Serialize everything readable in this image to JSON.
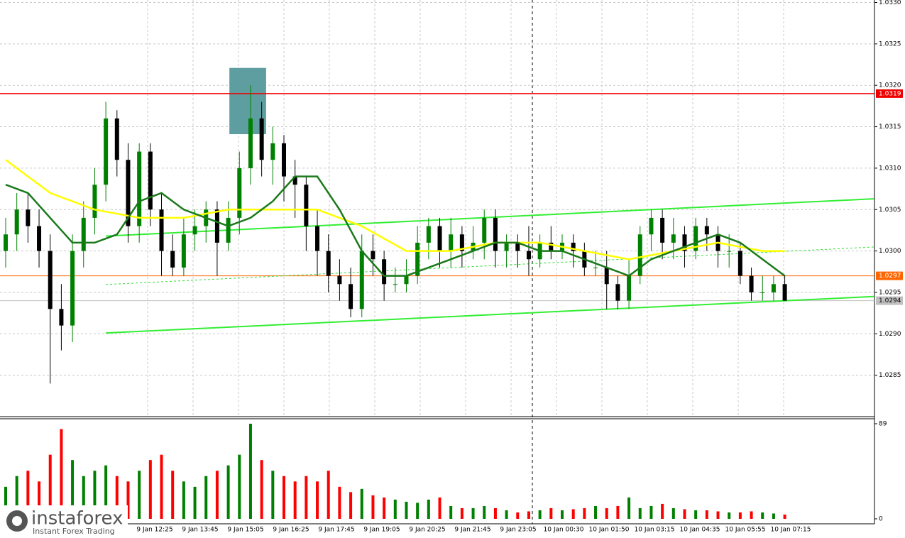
{
  "chart_data": {
    "type": "candlestick",
    "ylim": [
      1.028,
      1.03303
    ],
    "yticks": [
      {
        "value": 1.033,
        "label": "1.0330"
      },
      1.0325,
      {
        "value": 1.032,
        "label": "1.0320"
      },
      1.0315,
      {
        "value": 1.031,
        "label": "1.0310"
      },
      1.0305,
      {
        "value": 1.03,
        "label": "1.0300"
      },
      1.0295,
      {
        "value": 1.029,
        "label": "1.0290"
      },
      1.0285
    ],
    "grid": true,
    "xlabels": [
      "9 Jan 12:25",
      "9 Jan 13:45",
      "9 Jan 15:05",
      "9 Jan 16:25",
      "9 Jan 17:45",
      "9 Jan 19:05",
      "9 Jan 20:25",
      "9 Jan 21:45",
      "9 Jan 23:05",
      "10 Jan 00:30",
      "10 Jan 01:50",
      "10 Jan 03:15",
      "10 Jan 04:35",
      "10 Jan 05:55",
      "10 Jan 07:15"
    ],
    "up_color": "#008000",
    "down_color": "#000000",
    "volume_up_color": "#008000",
    "volume_down_color": "#ff0000",
    "open": [
      1.03,
      1.0302,
      1.0305,
      1.0303,
      1.03,
      1.0293,
      1.0291,
      1.03,
      1.0304,
      1.0308,
      1.0316,
      1.0311,
      1.0303,
      1.0312,
      1.0305,
      1.03,
      1.0298,
      1.0302,
      1.0303,
      1.0305,
      1.0301,
      1.0304,
      1.031,
      1.0316,
      1.0311,
      1.0313,
      1.0309,
      1.0308,
      1.0303,
      1.03,
      1.0297,
      1.0296,
      1.0293,
      1.03,
      1.0299,
      1.0296,
      1.0296,
      1.0297,
      1.0301,
      1.0303,
      1.03,
      1.0302,
      1.03,
      1.0301,
      1.0304,
      1.03,
      1.0301,
      1.03,
      1.0299,
      1.0301,
      1.03,
      1.0301,
      1.03,
      1.0298,
      1.0298,
      1.0296,
      1.0294,
      1.0297,
      1.0302,
      1.0304,
      1.0301,
      1.0302,
      1.03,
      1.0303,
      1.0302,
      1.03,
      1.03,
      1.0297,
      1.0295,
      1.0295,
      1.0296
    ],
    "high": [
      1.0304,
      1.0307,
      1.0307,
      1.0305,
      1.0302,
      1.0296,
      1.0302,
      1.0306,
      1.031,
      1.0318,
      1.0317,
      1.0313,
      1.0313,
      1.0313,
      1.0307,
      1.0302,
      1.0304,
      1.0305,
      1.0306,
      1.0306,
      1.0306,
      1.0312,
      1.032,
      1.0318,
      1.0315,
      1.0314,
      1.0311,
      1.0309,
      1.0305,
      1.0302,
      1.0299,
      1.0298,
      1.0302,
      1.0302,
      1.03,
      1.0298,
      1.0299,
      1.0303,
      1.0304,
      1.0304,
      1.0304,
      1.0303,
      1.0303,
      1.0305,
      1.0305,
      1.0302,
      1.0302,
      1.0303,
      1.0302,
      1.0303,
      1.0302,
      1.0302,
      1.0301,
      1.03,
      1.03,
      1.0297,
      1.0299,
      1.0303,
      1.0305,
      1.0305,
      1.0304,
      1.0303,
      1.0304,
      1.0304,
      1.0303,
      1.0302,
      1.0301,
      1.0298,
      1.0297,
      1.0297,
      1.0297
    ],
    "low": [
      1.0298,
      1.03,
      1.0301,
      1.0298,
      1.0284,
      1.0288,
      1.0289,
      1.0298,
      1.0302,
      1.0306,
      1.0309,
      1.0301,
      1.0301,
      1.0303,
      1.0297,
      1.0297,
      1.0297,
      1.03,
      1.0301,
      1.0297,
      1.03,
      1.0302,
      1.0308,
      1.0309,
      1.0308,
      1.0306,
      1.0304,
      1.03,
      1.0297,
      1.0295,
      1.0294,
      1.0292,
      1.0292,
      1.0297,
      1.0294,
      1.0295,
      1.0295,
      1.0296,
      1.0299,
      1.0298,
      1.0298,
      1.0298,
      1.0299,
      1.0299,
      1.0298,
      1.0298,
      1.0298,
      1.0297,
      1.0298,
      1.0299,
      1.0299,
      1.0298,
      1.0297,
      1.0297,
      1.0293,
      1.0293,
      1.0293,
      1.0296,
      1.03,
      1.0299,
      1.0299,
      1.0298,
      1.0299,
      1.03,
      1.0298,
      1.0298,
      1.0296,
      1.0294,
      1.0294,
      1.0294,
      1.0294
    ],
    "close": [
      1.0302,
      1.0305,
      1.0303,
      1.03,
      1.0293,
      1.0291,
      1.03,
      1.0304,
      1.0308,
      1.0316,
      1.0311,
      1.0303,
      1.0312,
      1.0305,
      1.03,
      1.0298,
      1.0302,
      1.0303,
      1.0305,
      1.0301,
      1.0304,
      1.031,
      1.0316,
      1.0311,
      1.0313,
      1.0309,
      1.0308,
      1.0303,
      1.03,
      1.0297,
      1.0296,
      1.0293,
      1.03,
      1.0299,
      1.0296,
      1.0296,
      1.0297,
      1.0301,
      1.0303,
      1.03,
      1.0302,
      1.03,
      1.0301,
      1.0304,
      1.03,
      1.0301,
      1.03,
      1.0299,
      1.0301,
      1.03,
      1.0301,
      1.03,
      1.0298,
      1.0298,
      1.0296,
      1.0294,
      1.0297,
      1.0302,
      1.0304,
      1.0301,
      1.0302,
      1.03,
      1.0303,
      1.0302,
      1.03,
      1.03,
      1.0297,
      1.0295,
      1.0295,
      1.0296,
      1.0294
    ],
    "volume": [
      30,
      40,
      45,
      35,
      60,
      84,
      55,
      40,
      45,
      50,
      40,
      35,
      45,
      55,
      60,
      45,
      35,
      30,
      40,
      45,
      50,
      60,
      89,
      55,
      45,
      40,
      35,
      40,
      35,
      45,
      30,
      25,
      28,
      22,
      20,
      18,
      16,
      15,
      18,
      20,
      12,
      10,
      10,
      12,
      10,
      8,
      6,
      7,
      8,
      10,
      8,
      9,
      10,
      12,
      10,
      12,
      20,
      10,
      12,
      14,
      10,
      9,
      8,
      8,
      7,
      6,
      6,
      7,
      6,
      5,
      4
    ],
    "vlim": [
      0,
      89
    ],
    "vticks": [
      89,
      0
    ],
    "moving_averages": [
      {
        "color": "#ffff00",
        "x": [
          0,
          4,
          8,
          12,
          16,
          20,
          24,
          28,
          32,
          36,
          40,
          44,
          48,
          52,
          56,
          60,
          64,
          68,
          70
        ],
        "values": [
          1.0311,
          1.0307,
          1.0305,
          1.0304,
          1.0304,
          1.0305,
          1.0305,
          1.0305,
          1.0303,
          1.03,
          1.03,
          1.0301,
          1.0301,
          1.03,
          1.0299,
          1.03,
          1.0301,
          1.03,
          1.03
        ]
      },
      {
        "color": "#1a7a1a",
        "x": [
          0,
          2,
          4,
          6,
          8,
          10,
          12,
          14,
          16,
          18,
          20,
          22,
          24,
          26,
          28,
          30,
          32,
          34,
          36,
          38,
          40,
          42,
          44,
          46,
          48,
          50,
          52,
          54,
          56,
          58,
          60,
          62,
          64,
          66,
          68,
          70
        ],
        "values": [
          1.0308,
          1.0307,
          1.0304,
          1.0301,
          1.0301,
          1.0302,
          1.0306,
          1.0307,
          1.0305,
          1.0304,
          1.0303,
          1.0304,
          1.0306,
          1.0309,
          1.0309,
          1.0305,
          1.03,
          1.0297,
          1.0297,
          1.0298,
          1.0299,
          1.03,
          1.0301,
          1.0301,
          1.03,
          1.03,
          1.0299,
          1.0298,
          1.0297,
          1.0299,
          1.03,
          1.0301,
          1.0302,
          1.0301,
          1.0299,
          1.0297
        ]
      }
    ],
    "trend_lines": [
      {
        "color": "#33ee33",
        "x": [
          9,
          78
        ],
        "values": [
          1.03018,
          1.03063
        ]
      },
      {
        "color": "#33ee33",
        "x": [
          9,
          78
        ],
        "values": [
          1.02901,
          1.02945
        ]
      },
      {
        "color": "#33dd33",
        "dashed": true,
        "x": [
          9,
          78
        ],
        "values": [
          1.029595,
          1.030048
        ]
      }
    ],
    "levels": [
      {
        "value": 1.0319,
        "color": "#ee0000"
      },
      {
        "value": 1.0297,
        "color": "#ff6600"
      },
      {
        "value": 1.0294,
        "color": "#c0c0c0"
      }
    ],
    "highlight": {
      "color": "#5f9ea0",
      "x": [
        20.1,
        23.4
      ],
      "values": [
        1.03221,
        1.03141
      ]
    },
    "watermark": {
      "brand": "instaforex",
      "tagline": "Instant Forex Trading"
    }
  }
}
